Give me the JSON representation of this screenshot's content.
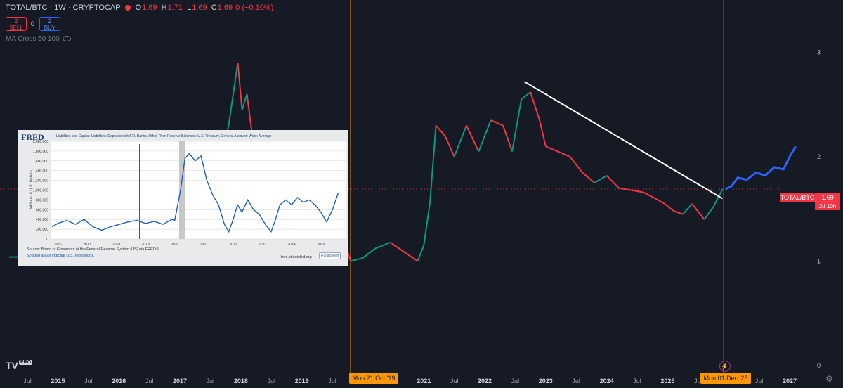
{
  "header": {
    "symbol": "TOTAL/BTC · 1W · CRYPTOCAP",
    "open_label": "O",
    "open": "1.69",
    "high_label": "H",
    "high": "1.71",
    "low_label": "L",
    "low": "1.69",
    "close_label": "C",
    "close": "1.69",
    "change": "0 (−0.10%)"
  },
  "trade": {
    "sell_qty": "2",
    "sell_label": "SELL",
    "spread": "0",
    "buy_qty": "2",
    "buy_label": "BUY"
  },
  "indicator": {
    "label": "MA Cross 50 100"
  },
  "price": {
    "label": "TOTAL/BTC",
    "value": "1.69",
    "countdown": "2d 10h"
  },
  "colors": {
    "up": "#089981",
    "down": "#f23645",
    "accent": "#ff9800",
    "projection": "#2962ff",
    "bg": "#161a25"
  },
  "highlights": {
    "left": "Mon 21 Oct '19",
    "right": "Mon 01 Dec '25"
  },
  "branding": {
    "logo": "TV",
    "badge": "PRO"
  },
  "icons": {
    "gear": "gear-icon",
    "flash": "flash-icon",
    "eye": "eye-icon"
  },
  "chart_data": {
    "type": "line",
    "title": "TOTAL/BTC · 1W · CRYPTOCAP",
    "y_ticks": [
      0,
      1,
      2,
      3
    ],
    "ylim": [
      0,
      3.3
    ],
    "x_ticks": [
      "Jul",
      "2015",
      "Jul",
      "2016",
      "Jul",
      "2017",
      "Jul",
      "2018",
      "Jul",
      "2019",
      "Jul",
      "2020",
      "Jul",
      "2021",
      "Jul",
      "2022",
      "Jul",
      "2023",
      "Jul",
      "2024",
      "Jul",
      "2025",
      "Jul",
      "2026",
      "Jul",
      "2027"
    ],
    "x_years": [
      2014.5,
      2015,
      2015.5,
      2016,
      2016.5,
      2017,
      2017.5,
      2018,
      2018.5,
      2019,
      2019.5,
      2020,
      2020.5,
      2021,
      2021.5,
      2022,
      2022.5,
      2023,
      2023.5,
      2024,
      2024.5,
      2025,
      2025.5,
      2026,
      2026.5,
      2027
    ],
    "xlim": [
      2014.05,
      2027.3
    ],
    "series": [
      {
        "x": [
          2014.2,
          2014.6,
          2015.0,
          2015.5,
          2016.0,
          2016.5,
          2016.9,
          2017.1,
          2017.3,
          2017.45,
          2017.6,
          2017.8,
          2017.95,
          2018.02,
          2018.1,
          2018.2,
          2018.35,
          2018.5,
          2018.7,
          2018.9,
          2019.05,
          2019.3,
          2019.5,
          2019.8,
          2020.0,
          2020.2,
          2020.45,
          2020.7,
          2020.9,
          2021.0,
          2021.1,
          2021.2,
          2021.35,
          2021.5,
          2021.7,
          2021.9,
          2022.1,
          2022.3,
          2022.45,
          2022.6,
          2022.75,
          2022.9,
          2023.0,
          2023.2,
          2023.4,
          2023.6,
          2023.8,
          2024.0,
          2024.2,
          2024.4,
          2024.6,
          2024.8,
          2024.95,
          2025.1,
          2025.25,
          2025.4,
          2025.6,
          2025.75,
          2025.9
        ],
        "y": [
          1.04,
          1.04,
          1.05,
          1.07,
          1.09,
          1.13,
          1.12,
          1.2,
          1.55,
          2.0,
          1.8,
          2.3,
          2.9,
          2.45,
          2.6,
          2.15,
          1.9,
          1.55,
          1.35,
          1.3,
          1.28,
          1.37,
          1.55,
          1.0,
          1.03,
          1.12,
          1.18,
          1.08,
          1.0,
          1.15,
          1.55,
          2.3,
          2.2,
          2.0,
          2.3,
          2.05,
          2.35,
          2.3,
          2.05,
          2.55,
          2.62,
          2.35,
          2.1,
          2.05,
          2.0,
          1.85,
          1.75,
          1.82,
          1.7,
          1.68,
          1.66,
          1.6,
          1.55,
          1.48,
          1.45,
          1.55,
          1.4,
          1.52,
          1.69
        ]
      },
      {
        "x": [
          2025.95,
          2026.05,
          2026.15,
          2026.3,
          2026.45,
          2026.6,
          2026.75,
          2026.9,
          2027.0,
          2027.1
        ],
        "y": [
          1.69,
          1.72,
          1.8,
          1.78,
          1.85,
          1.82,
          1.9,
          1.88,
          2.0,
          2.1
        ]
      }
    ],
    "trendline": {
      "x": [
        2022.65,
        2025.9
      ],
      "y": [
        2.72,
        1.6
      ]
    },
    "vlines": [
      2019.8,
      2025.92
    ],
    "inset": {
      "source": "FRED",
      "title": "Liabilities and Capital: Liabilities: Deposits with F.R. Banks, Other Than Reserve Balances: U.S. Treasury, General Account: Week Average",
      "ylabel": "Millions of U.S. Dollars",
      "y_ticks": [
        "0",
        "200,000",
        "400,000",
        "600,000",
        "800,000",
        "1,000,000",
        "1,200,000",
        "1,400,000",
        "1,600,000",
        "1,800,000",
        "2,000,000"
      ],
      "x_ticks": [
        "2016",
        "2017",
        "2018",
        "2019",
        "2020",
        "2021",
        "2022",
        "2023",
        "2024",
        "2025"
      ],
      "x": [
        2015.8,
        2016.0,
        2016.3,
        2016.6,
        2016.9,
        2017.2,
        2017.5,
        2017.8,
        2018.1,
        2018.4,
        2018.7,
        2019.0,
        2019.3,
        2019.6,
        2019.9,
        2020.0,
        2020.2,
        2020.35,
        2020.5,
        2020.7,
        2020.9,
        2021.1,
        2021.3,
        2021.5,
        2021.7,
        2021.85,
        2022.0,
        2022.15,
        2022.3,
        2022.5,
        2022.7,
        2022.9,
        2023.1,
        2023.3,
        2023.45,
        2023.6,
        2023.8,
        2024.0,
        2024.2,
        2024.4,
        2024.6,
        2024.8,
        2025.0,
        2025.2,
        2025.4,
        2025.6
      ],
      "y": [
        250000,
        320000,
        380000,
        300000,
        400000,
        250000,
        180000,
        250000,
        300000,
        350000,
        380000,
        320000,
        360000,
        300000,
        400000,
        380000,
        1000000,
        1650000,
        1750000,
        1600000,
        1700000,
        1200000,
        900000,
        700000,
        300000,
        150000,
        400000,
        700000,
        550000,
        800000,
        600000,
        500000,
        300000,
        150000,
        400000,
        700000,
        800000,
        700000,
        850000,
        750000,
        800000,
        700000,
        550000,
        350000,
        600000,
        950000
      ],
      "recessions": [
        [
          2020.15,
          2020.35
        ]
      ],
      "marker_year": 2018.8,
      "source_note": "Source: Board of Governors of the Federal Reserve System (US) via FRED®",
      "shade_note": "Shaded areas indicate U.S. recessions.",
      "url": "fred.stlouisfed.org",
      "fullscreen": "Fullscreen"
    }
  }
}
